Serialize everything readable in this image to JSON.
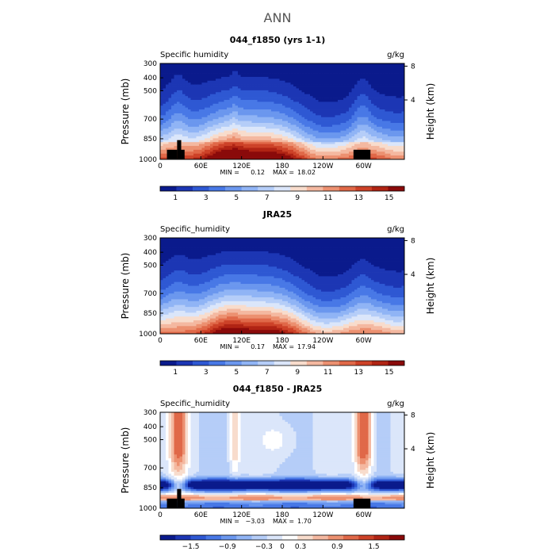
{
  "figure": {
    "title": "ANN"
  },
  "colors": {
    "sequential": [
      "#0a1a8c",
      "#1c36b4",
      "#2e58d3",
      "#4878e6",
      "#6b97ee",
      "#90b4f5",
      "#b5cdf8",
      "#dbe6fa",
      "#f8dccc",
      "#f4b8a0",
      "#ec9070",
      "#e06848",
      "#cd4228",
      "#b02414",
      "#8a0a0a"
    ],
    "diverging": [
      "#0a1a8c",
      "#1c36b4",
      "#2e58d3",
      "#4878e6",
      "#6b97ee",
      "#90b4f5",
      "#b5cdf8",
      "#dbe6fa",
      "#ffffff",
      "#f8dccc",
      "#f4b8a0",
      "#ec9070",
      "#e06848",
      "#cd4228",
      "#b02414",
      "#8a0a0a"
    ],
    "terrain": "#000000"
  },
  "chart_data": [
    {
      "type": "heatmap",
      "title": "044_f1850 (yrs 1-1)",
      "field": "Specific humidity",
      "units": "g/kg",
      "ylabel": "Pressure (mb)",
      "y2label": "Height (km)",
      "xticks": [
        "0",
        "60E",
        "120E",
        "180",
        "120W",
        "60W"
      ],
      "yticks": [
        "300",
        "400",
        "500",
        "700",
        "850",
        "1000"
      ],
      "y2ticks": [
        "8",
        "4"
      ],
      "min_label": "MIN =",
      "min_value": "0.12",
      "max_label": "MAX =",
      "max_value": "18.02",
      "colorbar_labels": [
        "1",
        "3",
        "5",
        "7",
        "9",
        "11",
        "13",
        "15"
      ],
      "range": [
        0,
        16
      ]
    },
    {
      "type": "heatmap",
      "title": "JRA25",
      "field": "Specific_humidity",
      "units": "g/kg",
      "ylabel": "Pressure (mb)",
      "y2label": "Height (km)",
      "xticks": [
        "0",
        "60E",
        "120E",
        "180",
        "120W",
        "60W"
      ],
      "yticks": [
        "300",
        "400",
        "500",
        "700",
        "850",
        "1000"
      ],
      "y2ticks": [
        "8",
        "4"
      ],
      "min_label": "MIN =",
      "min_value": "0.17",
      "max_label": "MAX =",
      "max_value": "17.94",
      "colorbar_labels": [
        "1",
        "3",
        "5",
        "7",
        "9",
        "11",
        "13",
        "15"
      ],
      "range": [
        0,
        16
      ]
    },
    {
      "type": "heatmap",
      "title": "044_f1850 - JRA25",
      "field": "Specific_humidity",
      "units": "g/kg",
      "ylabel": "Pressure (mb)",
      "y2label": "Height (km)",
      "xticks": [
        "0",
        "60E",
        "120E",
        "180",
        "120W",
        "60W"
      ],
      "yticks": [
        "300",
        "400",
        "500",
        "700",
        "850",
        "1000"
      ],
      "y2ticks": [
        "8",
        "4"
      ],
      "min_label": "MIN =",
      "min_value": "−3.03",
      "max_label": "MAX =",
      "max_value": "1.70",
      "colorbar_labels": [
        "−1.5",
        "−0.9",
        "−0.3",
        "0",
        "0.3",
        "0.9",
        "1.5"
      ],
      "range": [
        -2,
        2
      ]
    }
  ]
}
